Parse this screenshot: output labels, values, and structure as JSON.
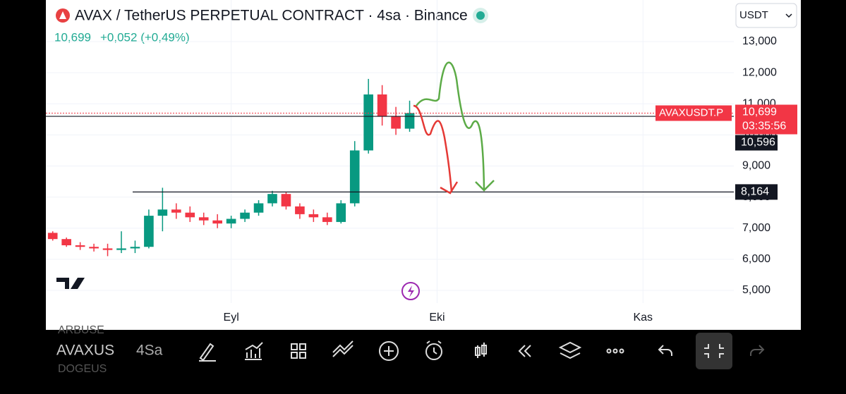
{
  "header": {
    "title": "AVAX / TetherUS PERPETUAL CONTRACT · 4sa · Binance",
    "price": "10,699",
    "change": "+0,052 (+0,49%)",
    "currency": "USDT"
  },
  "toolbar": {
    "symbol": "AVAXUS",
    "interval": "4Sa"
  },
  "watchlist": [
    "ARBUSE",
    "DOGEUS"
  ],
  "chart_data": {
    "type": "candlestick",
    "categories": [
      null,
      null,
      null,
      null,
      null,
      null,
      null,
      null,
      null,
      null,
      null,
      null,
      null,
      "Eyl",
      null,
      null,
      null,
      null,
      null,
      null,
      null,
      null,
      null,
      null,
      null,
      null,
      null,
      null,
      "Eki",
      null,
      null,
      null,
      null,
      null,
      null,
      null,
      null,
      null,
      null,
      null,
      null,
      null,
      null,
      "Kas",
      null,
      null,
      null,
      null,
      null,
      null,
      null,
      null,
      null,
      null,
      null
    ],
    "candles": [
      [
        6850,
        6900,
        6600,
        6650
      ],
      [
        6650,
        6700,
        6400,
        6450
      ],
      [
        6450,
        6550,
        6300,
        6400
      ],
      [
        6400,
        6500,
        6250,
        6350
      ],
      [
        6350,
        6500,
        6100,
        6300
      ],
      [
        6300,
        6900,
        6200,
        6350
      ],
      [
        6350,
        6600,
        6200,
        6400
      ],
      [
        6400,
        7600,
        6350,
        7400
      ],
      [
        7400,
        8300,
        6900,
        7600
      ],
      [
        7600,
        7800,
        7300,
        7500
      ],
      [
        7500,
        7700,
        7200,
        7350
      ],
      [
        7350,
        7500,
        7100,
        7250
      ],
      [
        7250,
        7450,
        7000,
        7150
      ],
      [
        7150,
        7400,
        7000,
        7300
      ],
      [
        7300,
        7600,
        7200,
        7500
      ],
      [
        7500,
        7900,
        7400,
        7800
      ],
      [
        7800,
        8200,
        7700,
        8100
      ],
      [
        8100,
        8150,
        7600,
        7700
      ],
      [
        7700,
        7800,
        7300,
        7450
      ],
      [
        7450,
        7600,
        7200,
        7350
      ],
      [
        7350,
        7500,
        7100,
        7200
      ],
      [
        7200,
        7900,
        7150,
        7800
      ],
      [
        7800,
        9800,
        7700,
        9500
      ],
      [
        9500,
        11800,
        9400,
        11300
      ],
      [
        11300,
        11600,
        10300,
        10600
      ],
      [
        10600,
        10900,
        10000,
        10200
      ],
      [
        10200,
        11100,
        10100,
        10700
      ],
      null,
      null,
      null,
      null,
      null,
      null,
      null,
      null,
      null,
      null,
      null,
      null,
      null,
      null,
      null,
      null,
      null,
      null,
      null,
      null,
      null,
      null,
      null,
      null,
      null,
      null,
      null,
      null
    ],
    "up_color": "#089981",
    "down_color": "#f23645",
    "ylim": [
      4592,
      14337
    ],
    "yticks": [
      {
        "value": 5000,
        "label": "5,000"
      },
      {
        "value": 6000,
        "label": "6,000"
      },
      {
        "value": 7000,
        "label": "7,000"
      },
      {
        "value": 8000,
        "label": "8,000"
      },
      {
        "value": 9000,
        "label": "9,000"
      },
      {
        "value": 10000,
        "label": "10,000"
      },
      {
        "value": 11000,
        "label": "11,000"
      },
      {
        "value": 12000,
        "label": "12,000"
      },
      {
        "value": 13000,
        "label": "13,000"
      }
    ],
    "grid": true,
    "hlines": [
      {
        "value": 10596,
        "label": "10,596"
      },
      {
        "value": 8164,
        "label": "8,164"
      }
    ],
    "last_price": {
      "value": 10699,
      "label": "10,699"
    },
    "countdown": "03:35:56",
    "symbol_tag": "AVAXUSDT.P"
  }
}
